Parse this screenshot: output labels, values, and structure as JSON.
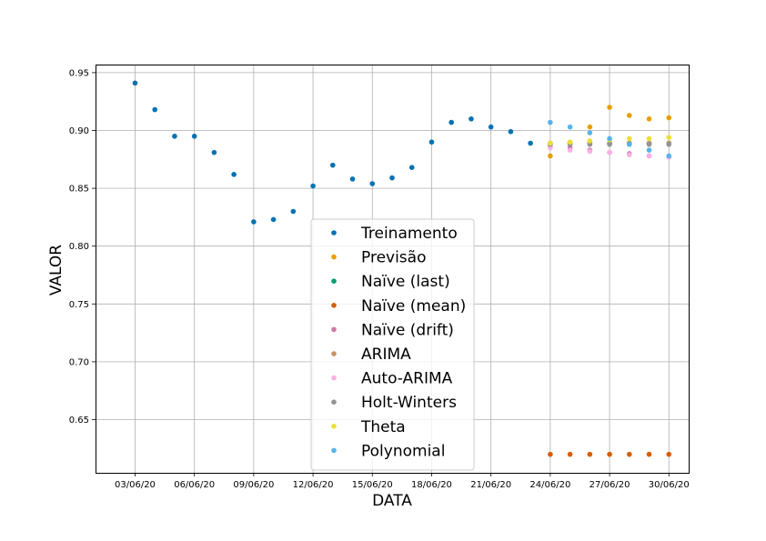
{
  "chart_data": {
    "type": "scatter",
    "xlabel": "DATA",
    "ylabel": "VALOR",
    "x_ticks": [
      "03/06/20",
      "06/06/20",
      "09/06/20",
      "12/06/20",
      "15/06/20",
      "18/06/20",
      "21/06/20",
      "24/06/20",
      "27/06/20",
      "30/06/20"
    ],
    "y_ticks": [
      "0.65",
      "0.70",
      "0.75",
      "0.80",
      "0.85",
      "0.90",
      "0.95"
    ],
    "xlim": [
      "2020-06-01",
      "2020-07-01"
    ],
    "ylim": [
      0.604,
      0.957
    ],
    "grid": true,
    "legend_position": "center",
    "series": [
      {
        "name": "Treinamento",
        "color": "#0072b2",
        "x": [
          "2020-06-03",
          "2020-06-04",
          "2020-06-05",
          "2020-06-06",
          "2020-06-07",
          "2020-06-08",
          "2020-06-09",
          "2020-06-10",
          "2020-06-11",
          "2020-06-12",
          "2020-06-13",
          "2020-06-14",
          "2020-06-15",
          "2020-06-16",
          "2020-06-17",
          "2020-06-18",
          "2020-06-19",
          "2020-06-20",
          "2020-06-21",
          "2020-06-22",
          "2020-06-23"
        ],
        "y": [
          0.941,
          0.918,
          0.895,
          0.895,
          0.881,
          0.862,
          0.821,
          0.823,
          0.83,
          0.852,
          0.87,
          0.858,
          0.854,
          0.859,
          0.868,
          0.89,
          0.907,
          0.91,
          0.903,
          0.899,
          0.889
        ]
      },
      {
        "name": "Previsão",
        "color": "#e69f00",
        "x": [
          "2020-06-24",
          "2020-06-25",
          "2020-06-26",
          "2020-06-27",
          "2020-06-28",
          "2020-06-29",
          "2020-06-30"
        ],
        "y": [
          0.878,
          0.889,
          0.903,
          0.92,
          0.913,
          0.91,
          0.911
        ]
      },
      {
        "name": "Naïve (last)",
        "color": "#009e73",
        "x": [
          "2020-06-24",
          "2020-06-25",
          "2020-06-26",
          "2020-06-27",
          "2020-06-28",
          "2020-06-29",
          "2020-06-30"
        ],
        "y": [
          0.889,
          0.889,
          0.889,
          0.889,
          0.889,
          0.889,
          0.889
        ]
      },
      {
        "name": "Naïve (mean)",
        "color": "#d55e00",
        "x": [
          "2020-06-24",
          "2020-06-25",
          "2020-06-26",
          "2020-06-27",
          "2020-06-28",
          "2020-06-29",
          "2020-06-30"
        ],
        "y": [
          0.62,
          0.62,
          0.62,
          0.62,
          0.62,
          0.62,
          0.62
        ]
      },
      {
        "name": "Naïve (drift)",
        "color": "#cc79a7",
        "x": [
          "2020-06-24",
          "2020-06-25",
          "2020-06-26",
          "2020-06-27",
          "2020-06-28",
          "2020-06-29",
          "2020-06-30"
        ],
        "y": [
          0.887,
          0.885,
          0.883,
          0.881,
          0.88,
          0.878,
          0.877
        ]
      },
      {
        "name": "ARIMA",
        "color": "#ca9161",
        "x": [
          "2020-06-24",
          "2020-06-25",
          "2020-06-26",
          "2020-06-27",
          "2020-06-28",
          "2020-06-29",
          "2020-06-30"
        ],
        "y": [
          0.889,
          0.889,
          0.889,
          0.889,
          0.889,
          0.889,
          0.889
        ]
      },
      {
        "name": "Auto-ARIMA",
        "color": "#fbafe4",
        "x": [
          "2020-06-24",
          "2020-06-25",
          "2020-06-26",
          "2020-06-27",
          "2020-06-28",
          "2020-06-29",
          "2020-06-30"
        ],
        "y": [
          0.885,
          0.883,
          0.882,
          0.881,
          0.879,
          0.878,
          0.877
        ]
      },
      {
        "name": "Holt-Winters",
        "color": "#949494",
        "x": [
          "2020-06-24",
          "2020-06-25",
          "2020-06-26",
          "2020-06-27",
          "2020-06-28",
          "2020-06-29",
          "2020-06-30"
        ],
        "y": [
          0.888,
          0.888,
          0.888,
          0.888,
          0.888,
          0.888,
          0.888
        ]
      },
      {
        "name": "Theta",
        "color": "#ece133",
        "x": [
          "2020-06-24",
          "2020-06-25",
          "2020-06-26",
          "2020-06-27",
          "2020-06-28",
          "2020-06-29",
          "2020-06-30"
        ],
        "y": [
          0.889,
          0.89,
          0.891,
          0.892,
          0.893,
          0.893,
          0.894
        ]
      },
      {
        "name": "Polynomial",
        "color": "#56b4e9",
        "x": [
          "2020-06-24",
          "2020-06-25",
          "2020-06-26",
          "2020-06-27",
          "2020-06-28",
          "2020-06-29",
          "2020-06-30"
        ],
        "y": [
          0.907,
          0.903,
          0.898,
          0.893,
          0.888,
          0.883,
          0.878
        ]
      }
    ]
  }
}
